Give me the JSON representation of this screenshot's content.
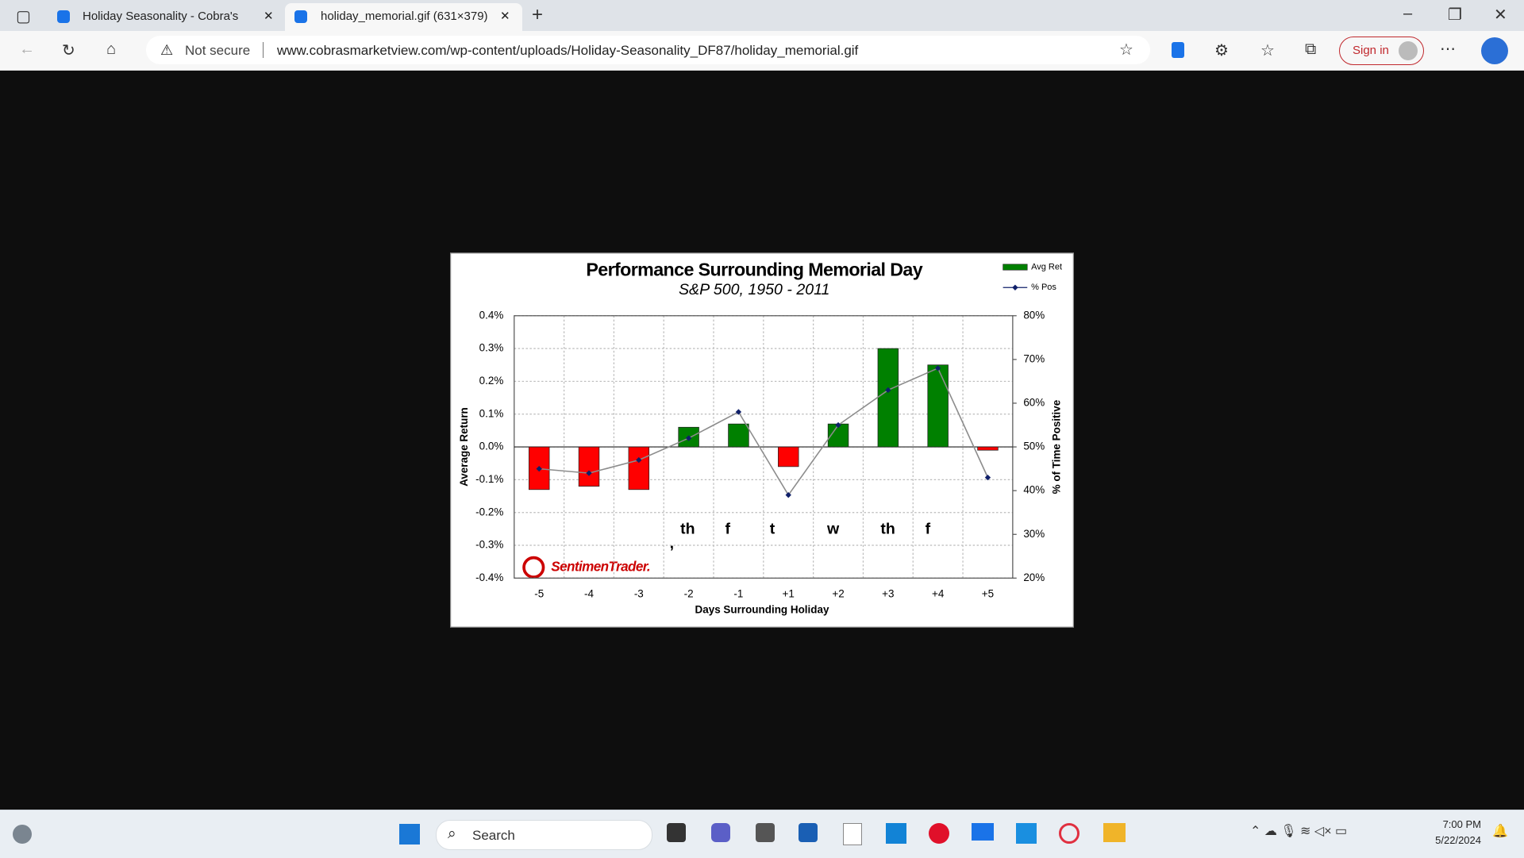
{
  "browser": {
    "tabs": [
      "Holiday Seasonality - Cobra's Ma",
      "holiday_memorial.gif (631×379)"
    ],
    "security": "Not secure",
    "url": "www.cobrasmarketview.com/wp-content/uploads/Holiday-Seasonality_DF87/holiday_memorial.gif",
    "sign_in": "Sign in"
  },
  "taskbar": {
    "search": "Search",
    "time": "7:00 PM",
    "date": "5/22/2024"
  },
  "chart_data": {
    "type": "bar",
    "title": "Performance Surrounding Memorial Day",
    "subtitle": "S&P 500, 1950 - 2011",
    "y_label": "Average Return",
    "y2_label": "% of Time Positive",
    "x_label": "Days Surrounding Holiday",
    "logo": "SentimenTrader.",
    "categories": [
      "-5",
      "-4",
      "-3",
      "-2",
      "-1",
      "+1",
      "+2",
      "+3",
      "+4",
      "+5"
    ],
    "series": [
      {
        "name": "Avg Ret",
        "type": "bar",
        "color": "#008000",
        "negative_color": "#ff0000",
        "values": [
          -0.13,
          -0.12,
          -0.13,
          0.06,
          0.07,
          -0.06,
          0.07,
          0.3,
          0.25,
          -0.01
        ]
      },
      {
        "name": "% Pos",
        "type": "line",
        "axis": "y2",
        "color": "#8c8c8c",
        "marker_color": "#10206a",
        "values": [
          45,
          44,
          47,
          52,
          58,
          39,
          55,
          63,
          68,
          43
        ]
      }
    ],
    "ylim": [
      -0.4,
      0.4
    ],
    "yticks": [
      {
        "value": -0.4,
        "label": "-0.4%"
      },
      {
        "value": -0.3,
        "label": "-0.3%"
      },
      {
        "value": -0.2,
        "label": "-0.2%"
      },
      {
        "value": -0.1,
        "label": "-0.1%"
      },
      {
        "value": 0,
        "label": "0.0%"
      },
      {
        "value": 0.1,
        "label": "0.1%"
      },
      {
        "value": 0.2,
        "label": "0.2%"
      },
      {
        "value": 0.3,
        "label": "0.3%"
      },
      {
        "value": 0.4,
        "label": "0.4%"
      }
    ],
    "y2lim": [
      20,
      80
    ],
    "y2ticks": [
      {
        "value": 20,
        "label": "20%"
      },
      {
        "value": 30,
        "label": "30%"
      },
      {
        "value": 40,
        "label": "40%"
      },
      {
        "value": 50,
        "label": "50%"
      },
      {
        "value": 60,
        "label": "60%"
      },
      {
        "value": 70,
        "label": "70%"
      },
      {
        "value": 80,
        "label": "80%"
      }
    ],
    "annotations": [
      ",",
      "th",
      "f",
      "t",
      "w",
      "th",
      "f"
    ],
    "grid": true,
    "legend": "top-right"
  }
}
